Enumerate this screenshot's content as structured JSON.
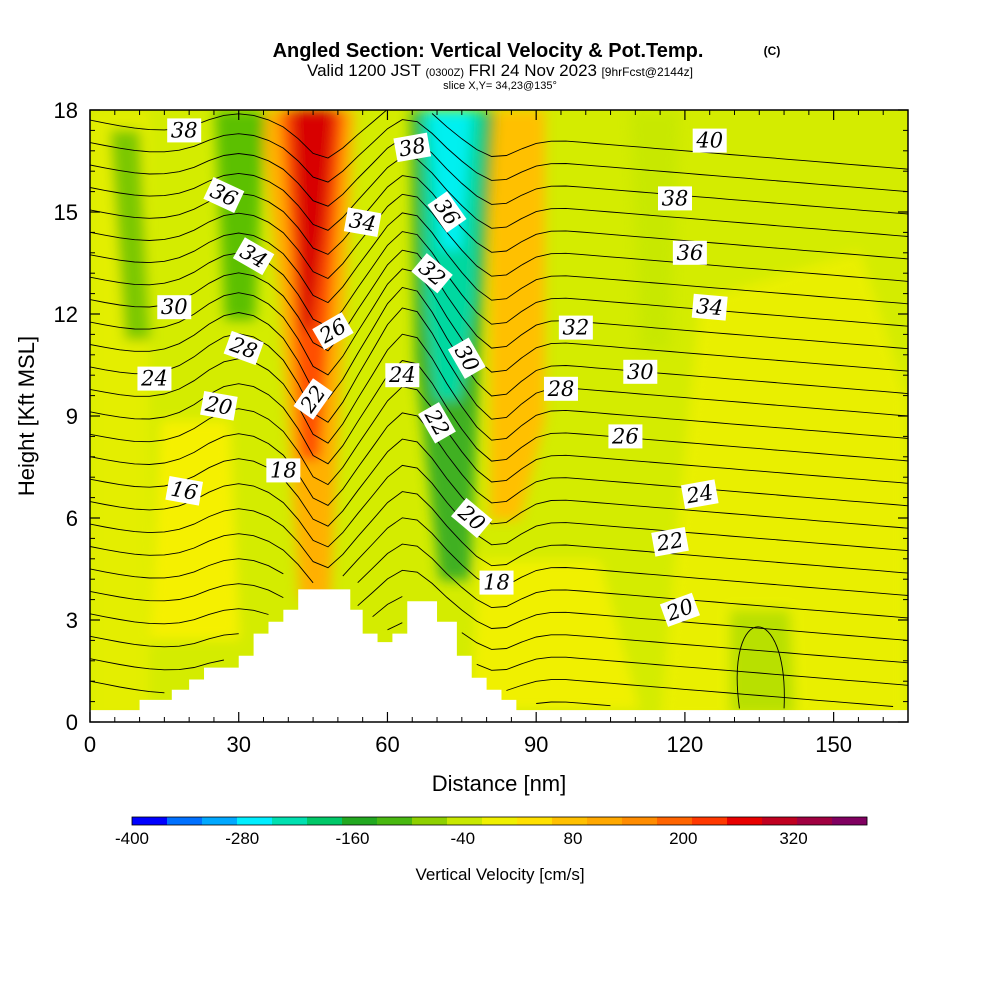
{
  "title": {
    "main": "Angled Section: Vertical Velocity & Pot.Temp.",
    "copyright": "(C)",
    "valid_prefix": "Valid 1200 JST",
    "valid_z": "(0300Z)",
    "valid_date": "FRI 24 Nov 2023",
    "forecast": "[9hrFcst@2144z]",
    "slice": "slice X,Y= 34,23@135°"
  },
  "chart_data": {
    "type": "heatmap",
    "xlabel": "Distance [nm]",
    "ylabel": "Height [Kft MSL]",
    "xlim": [
      0,
      165
    ],
    "ylim": [
      0,
      18
    ],
    "x_ticks": [
      "0",
      "30",
      "60",
      "90",
      "120",
      "150"
    ],
    "y_ticks": [
      "0",
      "3",
      "6",
      "9",
      "12",
      "15",
      "18"
    ],
    "x_tick_values": [
      0,
      30,
      60,
      90,
      120,
      150
    ],
    "y_tick_values": [
      0,
      3,
      6,
      9,
      12,
      15,
      18
    ],
    "colorbar": {
      "label": "Vertical Velocity [cm/s]",
      "tick_labels": [
        "-400",
        "-280",
        "-160",
        "-40",
        "80",
        "200",
        "320"
      ],
      "tick_values": [
        -400,
        -280,
        -160,
        -40,
        80,
        200,
        320
      ],
      "range": [
        -400,
        400
      ],
      "colors": [
        "#0000ff",
        "#0070ff",
        "#00a8ff",
        "#00eeff",
        "#00e0b0",
        "#00c868",
        "#22a820",
        "#48b810",
        "#8ed000",
        "#c8e800",
        "#f0f000",
        "#ffe000",
        "#ffc000",
        "#ffa800",
        "#ff8c00",
        "#ff6400",
        "#ff3800",
        "#e80000",
        "#c00020",
        "#a00040",
        "#800060"
      ]
    },
    "terrain_kft": [
      {
        "x": 0,
        "h": 0.35
      },
      {
        "x": 10,
        "h": 0.65
      },
      {
        "x": 16.5,
        "h": 0.95
      },
      {
        "x": 20,
        "h": 1.25
      },
      {
        "x": 23,
        "h": 1.6
      },
      {
        "x": 30,
        "h": 1.95
      },
      {
        "x": 33,
        "h": 2.6
      },
      {
        "x": 36,
        "h": 2.95
      },
      {
        "x": 39,
        "h": 3.3
      },
      {
        "x": 42,
        "h": 3.9
      },
      {
        "x": 47,
        "h": 3.9
      },
      {
        "x": 51,
        "h": 3.9
      },
      {
        "x": 52.5,
        "h": 3.3
      },
      {
        "x": 55,
        "h": 2.6
      },
      {
        "x": 58,
        "h": 2.35
      },
      {
        "x": 61,
        "h": 2.6
      },
      {
        "x": 64,
        "h": 3.55
      },
      {
        "x": 67,
        "h": 3.55
      },
      {
        "x": 70,
        "h": 2.95
      },
      {
        "x": 74,
        "h": 1.95
      },
      {
        "x": 77,
        "h": 1.3
      },
      {
        "x": 80,
        "h": 0.95
      },
      {
        "x": 83,
        "h": 0.65
      },
      {
        "x": 86,
        "h": 0.35
      },
      {
        "x": 165,
        "h": 0.35
      }
    ],
    "theta_contour_labels": [
      {
        "text": "38",
        "x": 19,
        "y": 17.4,
        "rot": 0
      },
      {
        "text": "36",
        "x": 27,
        "y": 15.5,
        "rot": 25
      },
      {
        "text": "34",
        "x": 33,
        "y": 13.7,
        "rot": 30
      },
      {
        "text": "30",
        "x": 17,
        "y": 12.2,
        "rot": 0
      },
      {
        "text": "28",
        "x": 31,
        "y": 11.0,
        "rot": 20
      },
      {
        "text": "24",
        "x": 13,
        "y": 10.1,
        "rot": 0
      },
      {
        "text": "20",
        "x": 26,
        "y": 9.3,
        "rot": 10
      },
      {
        "text": "16",
        "x": 19,
        "y": 6.8,
        "rot": 10
      },
      {
        "text": "38",
        "x": 65,
        "y": 16.9,
        "rot": -10
      },
      {
        "text": "34",
        "x": 55,
        "y": 14.7,
        "rot": 10
      },
      {
        "text": "36",
        "x": 72,
        "y": 15.0,
        "rot": 55
      },
      {
        "text": "32",
        "x": 69,
        "y": 13.2,
        "rot": 40
      },
      {
        "text": "26",
        "x": 49,
        "y": 11.5,
        "rot": -30
      },
      {
        "text": "24",
        "x": 63,
        "y": 10.2,
        "rot": 0
      },
      {
        "text": "30",
        "x": 76,
        "y": 10.7,
        "rot": 60
      },
      {
        "text": "22",
        "x": 45,
        "y": 9.5,
        "rot": -55
      },
      {
        "text": "22",
        "x": 70,
        "y": 8.8,
        "rot": 60
      },
      {
        "text": "18",
        "x": 39,
        "y": 7.4,
        "rot": 0
      },
      {
        "text": "20",
        "x": 77,
        "y": 6.0,
        "rot": 40
      },
      {
        "text": "18",
        "x": 82,
        "y": 4.1,
        "rot": 0
      },
      {
        "text": "40",
        "x": 125,
        "y": 17.1,
        "rot": 0
      },
      {
        "text": "38",
        "x": 118,
        "y": 15.4,
        "rot": 0
      },
      {
        "text": "36",
        "x": 121,
        "y": 13.8,
        "rot": 0
      },
      {
        "text": "34",
        "x": 125,
        "y": 12.2,
        "rot": 5
      },
      {
        "text": "32",
        "x": 98,
        "y": 11.6,
        "rot": 0
      },
      {
        "text": "30",
        "x": 111,
        "y": 10.3,
        "rot": 0
      },
      {
        "text": "28",
        "x": 95,
        "y": 9.8,
        "rot": 0
      },
      {
        "text": "26",
        "x": 108,
        "y": 8.4,
        "rot": 0
      },
      {
        "text": "24",
        "x": 123,
        "y": 6.7,
        "rot": -10
      },
      {
        "text": "22",
        "x": 117,
        "y": 5.3,
        "rot": -10
      },
      {
        "text": "20",
        "x": 119,
        "y": 3.3,
        "rot": -20
      }
    ]
  }
}
